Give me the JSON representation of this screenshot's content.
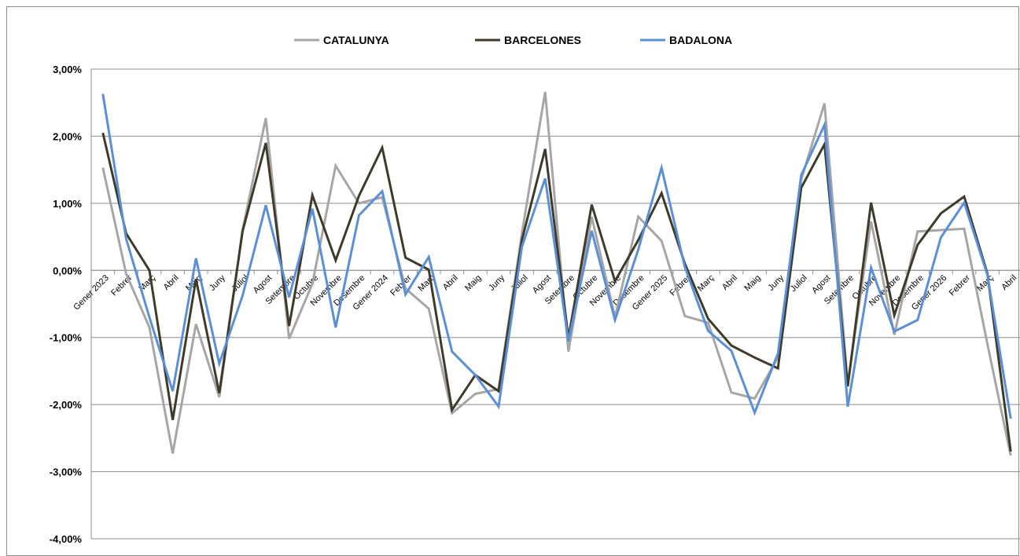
{
  "chart_data": {
    "type": "line",
    "title": "",
    "xlabel": "",
    "ylabel": "",
    "ylim": [
      -4.0,
      3.0
    ],
    "y_ticks": [
      "3,00%",
      "2,00%",
      "1,00%",
      "0,00%",
      "-1,00%",
      "-2,00%",
      "-3,00%",
      "-4,00%"
    ],
    "grid": true,
    "legend_position": "top",
    "categories": [
      "Gener 2023",
      "Febrer",
      "Març",
      "Abril",
      "Maig",
      "Juny",
      "Juliol",
      "Agost",
      "Setembre",
      "Octubre",
      "Novembre",
      "Desembre",
      "Gener 2024",
      "Febrer",
      "Març",
      "Abril",
      "Maig",
      "Juny",
      "Juliol",
      "Agost",
      "Setembre",
      "Octubre",
      "Novembre",
      "Desembre",
      "Gener 2025",
      "Febrer",
      "Març",
      "Abril",
      "Maig",
      "Juny",
      "Juliol",
      "Agost",
      "Setembre",
      "Octubre",
      "Novembre",
      "Desembre",
      "Gener 2026",
      "Febrer",
      "Març",
      "Abril"
    ],
    "series": [
      {
        "name": "CATALUNYA",
        "color": "#a6a6a6",
        "values": [
          1.53,
          -0.05,
          -0.85,
          -2.73,
          -0.8,
          -1.89,
          0.6,
          2.27,
          -1.02,
          -0.2,
          1.56,
          1.0,
          1.09,
          -0.27,
          -0.57,
          -2.13,
          -1.84,
          -1.77,
          0.55,
          2.66,
          -1.21,
          0.8,
          -0.7,
          0.8,
          0.44,
          -0.68,
          -0.78,
          -1.82,
          -1.91,
          -1.3,
          1.35,
          2.49,
          -1.69,
          0.73,
          -0.96,
          0.58,
          0.6,
          0.62,
          -1.1,
          -2.76
        ]
      },
      {
        "name": "BARCELONES",
        "color": "#3f3a2a",
        "values": [
          2.05,
          0.55,
          0.0,
          -2.23,
          -0.13,
          -1.83,
          0.58,
          1.9,
          -0.83,
          1.12,
          0.15,
          1.11,
          1.83,
          0.19,
          0.01,
          -2.08,
          -1.56,
          -1.8,
          0.45,
          1.81,
          -1.01,
          0.98,
          -0.16,
          0.45,
          1.15,
          0.1,
          -0.72,
          -1.12,
          -1.3,
          -1.46,
          1.23,
          1.88,
          -1.73,
          1.01,
          -0.67,
          0.38,
          0.85,
          1.1,
          -0.05,
          -2.7
        ]
      },
      {
        "name": "BADALONA",
        "color": "#5b8fd6",
        "values": [
          2.63,
          0.47,
          -0.7,
          -1.8,
          0.18,
          -1.39,
          -0.38,
          0.97,
          -0.4,
          0.92,
          -0.85,
          0.82,
          1.18,
          -0.36,
          0.2,
          -1.21,
          -1.56,
          -2.03,
          0.35,
          1.37,
          -1.06,
          0.59,
          -0.74,
          0.31,
          1.53,
          0.05,
          -0.9,
          -1.2,
          -2.12,
          -1.24,
          1.42,
          2.17,
          -2.03,
          0.04,
          -0.91,
          -0.74,
          0.49,
          1.01,
          -0.07,
          -2.21
        ]
      }
    ]
  }
}
